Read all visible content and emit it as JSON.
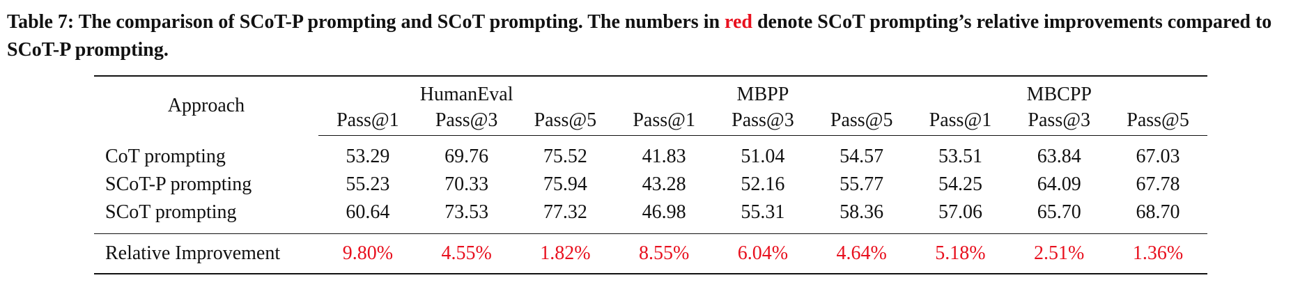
{
  "caption": {
    "prefix": "Table 7: The comparison of SCoT-P prompting and SCoT prompting. The numbers in ",
    "highlight": "red",
    "suffix": " denote SCoT prompting’s relative improvements compared to SCoT-P prompting.",
    "highlight_color": "#e8101e"
  },
  "table": {
    "approach_header": "Approach",
    "groups": [
      "HumanEval",
      "MBPP",
      "MBCPP"
    ],
    "metrics": [
      "Pass@1",
      "Pass@3",
      "Pass@5",
      "Pass@1",
      "Pass@3",
      "Pass@5",
      "Pass@1",
      "Pass@3",
      "Pass@5"
    ],
    "rows": [
      {
        "label": "CoT prompting",
        "values": [
          "53.29",
          "69.76",
          "75.52",
          "41.83",
          "51.04",
          "54.57",
          "53.51",
          "63.84",
          "67.03"
        ]
      },
      {
        "label": "SCoT-P prompting",
        "values": [
          "55.23",
          "70.33",
          "75.94",
          "43.28",
          "52.16",
          "55.77",
          "54.25",
          "64.09",
          "67.78"
        ]
      },
      {
        "label": "SCoT prompting",
        "values": [
          "60.64",
          "73.53",
          "77.32",
          "46.98",
          "55.31",
          "58.36",
          "57.06",
          "65.70",
          "68.70"
        ]
      }
    ],
    "improvement": {
      "label": "Relative Improvement",
      "values": [
        "9.80%",
        "4.55%",
        "1.82%",
        "8.55%",
        "6.04%",
        "4.64%",
        "5.18%",
        "2.51%",
        "1.36%"
      ]
    }
  }
}
